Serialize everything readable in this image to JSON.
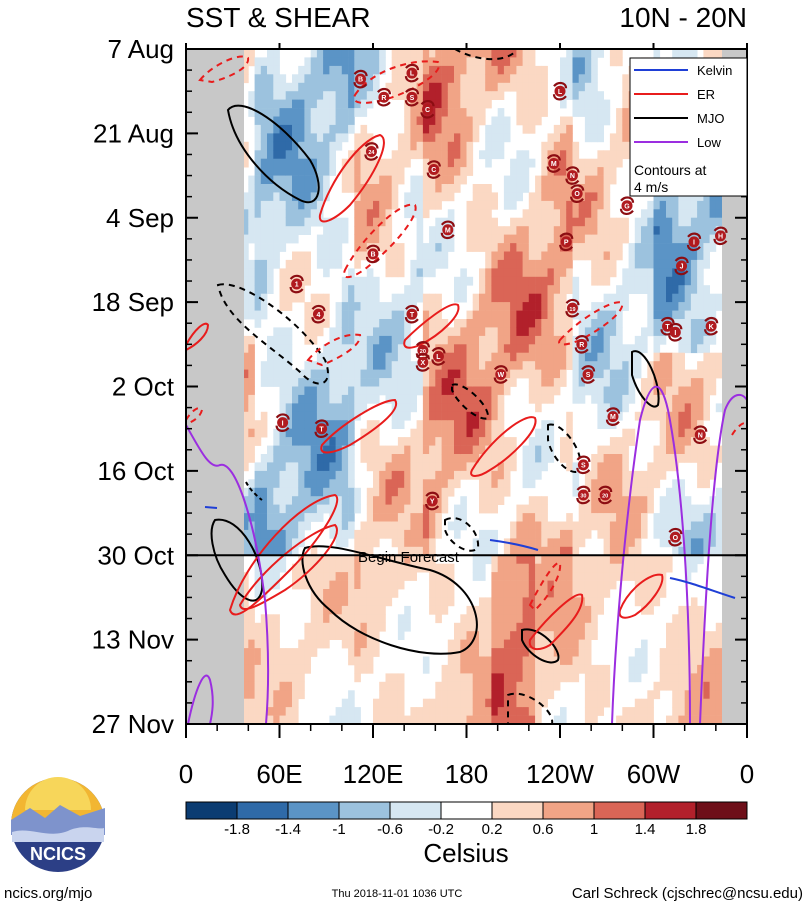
{
  "chart_data": {
    "type": "heatmap",
    "title_left": "SST & SHEAR",
    "title_right": "10N - 20N",
    "y_ticks": [
      {
        "label": "7 Aug",
        "day": 0
      },
      {
        "label": "21 Aug",
        "day": 14
      },
      {
        "label": "4 Sep",
        "day": 28
      },
      {
        "label": "18 Sep",
        "day": 42
      },
      {
        "label": "2 Oct",
        "day": 56
      },
      {
        "label": "16 Oct",
        "day": 70
      },
      {
        "label": "30 Oct",
        "day": 84
      },
      {
        "label": "13 Nov",
        "day": 98
      },
      {
        "label": "27 Nov",
        "day": 112
      }
    ],
    "x_ticks": [
      {
        "label": "0",
        "lon": 0
      },
      {
        "label": "60E",
        "lon": 60
      },
      {
        "label": "120E",
        "lon": 120
      },
      {
        "label": "180",
        "lon": 180
      },
      {
        "label": "120W",
        "lon": 240
      },
      {
        "label": "60W",
        "lon": 300
      },
      {
        "label": "0",
        "lon": 360
      }
    ],
    "x_range": [
      0,
      360
    ],
    "y_range_days": [
      0,
      112
    ],
    "forecast_line_day": 84,
    "forecast_label": "Begin Forecast",
    "legend": {
      "items": [
        {
          "name": "Kelvin",
          "color": "#1f3fd6"
        },
        {
          "name": "ER",
          "color": "#e81c1c"
        },
        {
          "name": "MJO",
          "color": "#000000"
        },
        {
          "name": "Low",
          "color": "#9b2ee0"
        }
      ],
      "note_line1": "Contours at",
      "note_line2": "4 m/s",
      "position": "top-right"
    },
    "colorbar": {
      "label": "Celsius",
      "tick_labels": [
        "-1.8",
        "-1.4",
        "-1",
        "-0.6",
        "-0.2",
        "0.2",
        "0.6",
        "1",
        "1.4",
        "1.8"
      ],
      "colors": [
        "#0b3c72",
        "#2f6aa8",
        "#5b94c6",
        "#9cc2de",
        "#d6e7f2",
        "#ffffff",
        "#fbd8c3",
        "#f1a486",
        "#da6556",
        "#b2202b",
        "#6e0f19"
      ]
    },
    "storms": [
      {
        "letter": "B",
        "lon": 112,
        "day": 5
      },
      {
        "letter": "L",
        "lon": 145,
        "day": 4
      },
      {
        "letter": "R",
        "lon": 127,
        "day": 8
      },
      {
        "letter": "S",
        "lon": 145,
        "day": 8
      },
      {
        "letter": "C",
        "lon": 155,
        "day": 10
      },
      {
        "letter": "L",
        "lon": 240,
        "day": 7
      },
      {
        "letter": "24",
        "lon": 119,
        "day": 17
      },
      {
        "letter": "C",
        "lon": 159,
        "day": 20
      },
      {
        "letter": "M",
        "lon": 236,
        "day": 19
      },
      {
        "letter": "N",
        "lon": 248,
        "day": 21
      },
      {
        "letter": "O",
        "lon": 251,
        "day": 24
      },
      {
        "letter": "G",
        "lon": 283,
        "day": 26
      },
      {
        "letter": "M",
        "lon": 168,
        "day": 30
      },
      {
        "letter": "B",
        "lon": 120,
        "day": 34
      },
      {
        "letter": "P",
        "lon": 244,
        "day": 32
      },
      {
        "letter": "I",
        "lon": 326,
        "day": 32
      },
      {
        "letter": "H",
        "lon": 343,
        "day": 31
      },
      {
        "letter": "J",
        "lon": 318,
        "day": 36
      },
      {
        "letter": "1",
        "lon": 71,
        "day": 39
      },
      {
        "letter": "4",
        "lon": 85,
        "day": 44
      },
      {
        "letter": "T",
        "lon": 145,
        "day": 44
      },
      {
        "letter": "19",
        "lon": 248,
        "day": 43
      },
      {
        "letter": "T",
        "lon": 309,
        "day": 46
      },
      {
        "letter": "I",
        "lon": 314,
        "day": 47
      },
      {
        "letter": "K",
        "lon": 337,
        "day": 46
      },
      {
        "letter": "R",
        "lon": 254,
        "day": 49
      },
      {
        "letter": "20",
        "lon": 152,
        "day": 50
      },
      {
        "letter": "L",
        "lon": 162,
        "day": 51
      },
      {
        "letter": "X",
        "lon": 152,
        "day": 52
      },
      {
        "letter": "W",
        "lon": 202,
        "day": 54
      },
      {
        "letter": "S",
        "lon": 258,
        "day": 54
      },
      {
        "letter": "M",
        "lon": 274,
        "day": 61
      },
      {
        "letter": "I",
        "lon": 62,
        "day": 62
      },
      {
        "letter": "T",
        "lon": 87,
        "day": 63
      },
      {
        "letter": "N",
        "lon": 330,
        "day": 64
      },
      {
        "letter": "S",
        "lon": 255,
        "day": 69
      },
      {
        "letter": "Y",
        "lon": 158,
        "day": 75
      },
      {
        "letter": "30",
        "lon": 255,
        "day": 74
      },
      {
        "letter": "20",
        "lon": 269,
        "day": 74
      },
      {
        "letter": "O",
        "lon": 314,
        "day": 81
      }
    ]
  },
  "footer": {
    "logo_text": "NCICS",
    "site": "ncics.org/mjo",
    "timestamp": "Thu 2018-11-01 1036 UTC",
    "author": "Carl Schreck (cjschrec@ncsu.edu)"
  }
}
